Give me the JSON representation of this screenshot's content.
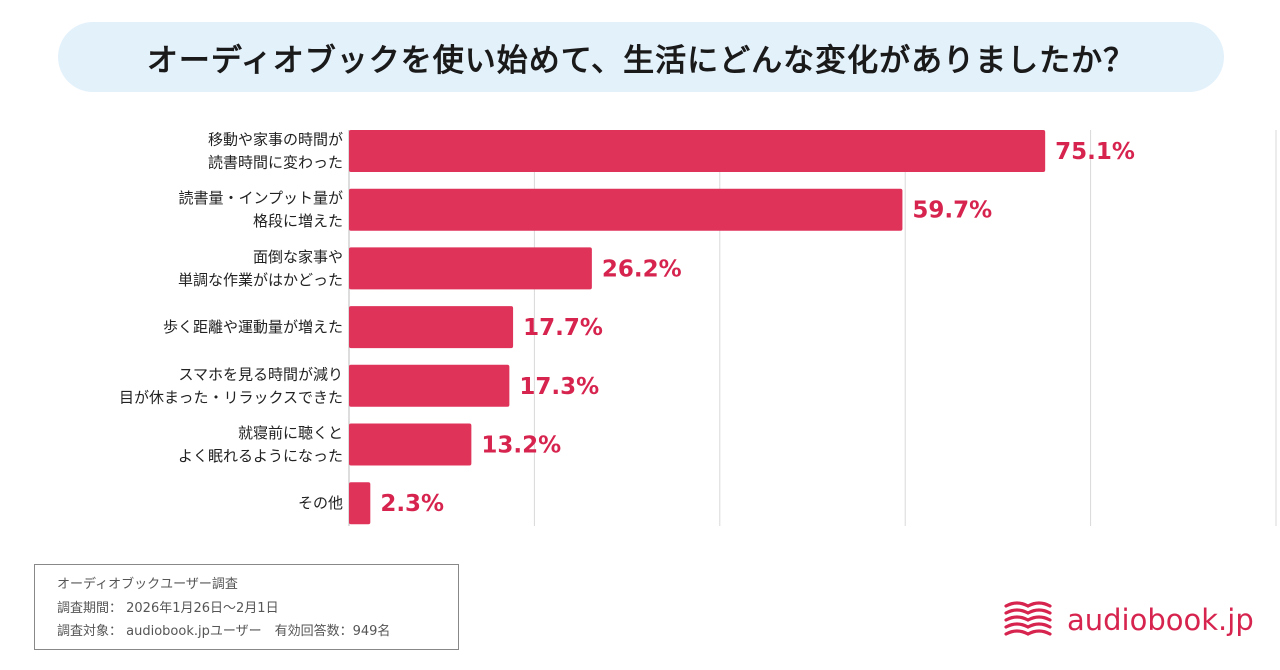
{
  "title": "オーディオブックを使い始めて、生活にどんな変化がありましたか？",
  "chart_data": {
    "type": "bar",
    "orientation": "horizontal",
    "categories": [
      [
        "移動や家事の時間が",
        "読書時間に変わった"
      ],
      [
        "読書量・インプット量が",
        "格段に増えた"
      ],
      [
        "面倒な家事や",
        "単調な作業がはかどった"
      ],
      [
        "歩く距離や運動量が増えた"
      ],
      [
        "スマホを見る時間が減り",
        "目が休まった・リラックスできた"
      ],
      [
        "就寝前に聴くと",
        "よく眠れるようになった"
      ],
      [
        "その他"
      ]
    ],
    "values": [
      75.1,
      59.7,
      26.2,
      17.7,
      17.3,
      13.2,
      2.3
    ],
    "value_labels": [
      "75.1%",
      "59.7%",
      "26.2%",
      "17.7%",
      "17.3%",
      "13.2%",
      "2.3%"
    ],
    "xlim": [
      0,
      100
    ],
    "grid": true,
    "bar_color": "#e0335a",
    "label_color": "#d6244f"
  },
  "notes": {
    "line1": "オーディオブックユーザー調査",
    "line2": "調査期間： 2026年1月26日〜2月1日",
    "line3": "調査対象： audiobook.jpユーザー　有効回答数：949名"
  },
  "logo": {
    "text": "audiobook.jp",
    "icon": "open-book-icon",
    "color": "#d6244f"
  }
}
